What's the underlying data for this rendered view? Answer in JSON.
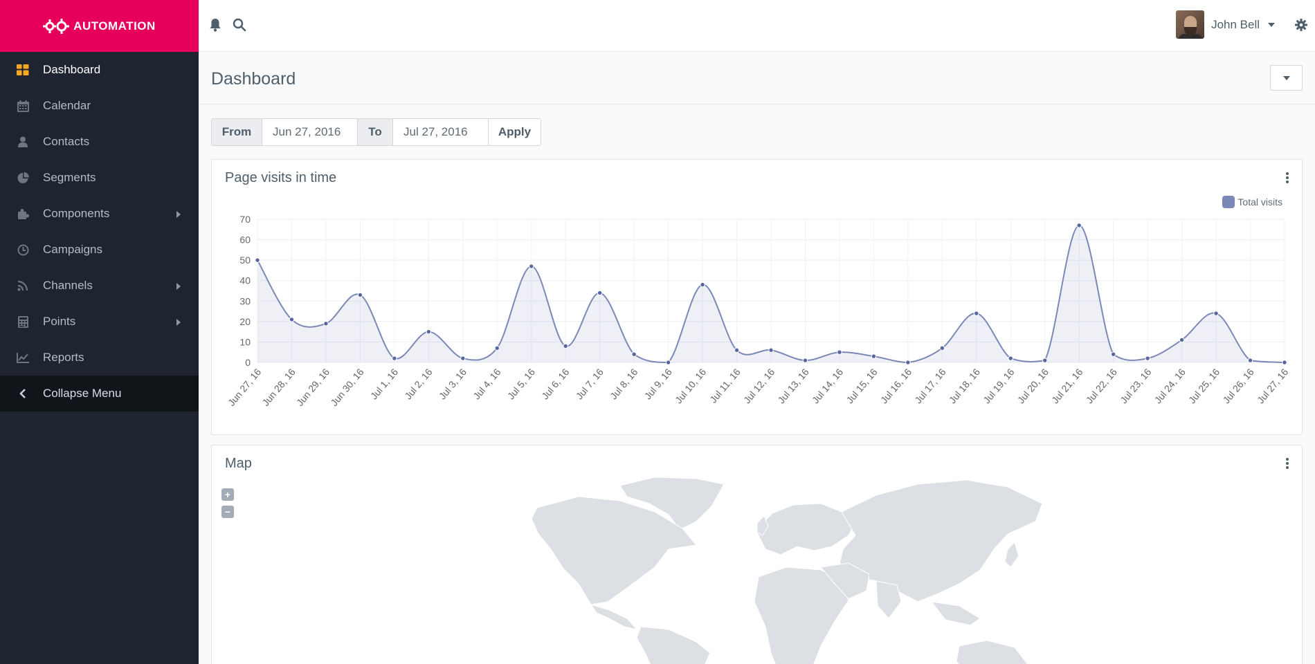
{
  "brand": {
    "name": "AUTOMATION"
  },
  "sidebar": {
    "items": [
      {
        "label": "Dashboard",
        "icon": "dashboard-icon",
        "active": true
      },
      {
        "label": "Calendar",
        "icon": "calendar-icon"
      },
      {
        "label": "Contacts",
        "icon": "user-icon"
      },
      {
        "label": "Segments",
        "icon": "pie-chart-icon"
      },
      {
        "label": "Components",
        "icon": "puzzle-icon",
        "submenu": true
      },
      {
        "label": "Campaigns",
        "icon": "clock-icon"
      },
      {
        "label": "Channels",
        "icon": "rss-icon",
        "submenu": true
      },
      {
        "label": "Points",
        "icon": "calculator-icon",
        "submenu": true
      },
      {
        "label": "Reports",
        "icon": "line-chart-icon"
      }
    ],
    "collapse_label": "Collapse Menu"
  },
  "topbar": {
    "user_name": "John Bell"
  },
  "page": {
    "title": "Dashboard"
  },
  "date_filter": {
    "from_label": "From",
    "from_value": "Jun 27, 2016",
    "to_label": "To",
    "to_value": "Jul 27, 2016",
    "apply_label": "Apply"
  },
  "chart_panel": {
    "title": "Page visits in time"
  },
  "map_panel": {
    "title": "Map",
    "zoom_in": "+",
    "zoom_out": "−"
  },
  "colors": {
    "accent": "#e6005b",
    "sidebar": "#1e2530",
    "series": "#7b88b6",
    "map_land": "#dcdfe4"
  },
  "chart_data": {
    "type": "line",
    "title": "Page visits in time",
    "x": [
      "Jun 27, 16",
      "Jun 28, 16",
      "Jun 29, 16",
      "Jun 30, 16",
      "Jul 1, 16",
      "Jul 2, 16",
      "Jul 3, 16",
      "Jul 4, 16",
      "Jul 5, 16",
      "Jul 6, 16",
      "Jul 7, 16",
      "Jul 8, 16",
      "Jul 9, 16",
      "Jul 10, 16",
      "Jul 11, 16",
      "Jul 12, 16",
      "Jul 13, 16",
      "Jul 14, 16",
      "Jul 15, 16",
      "Jul 16, 16",
      "Jul 17, 16",
      "Jul 18, 16",
      "Jul 19, 16",
      "Jul 20, 16",
      "Jul 21, 16",
      "Jul 22, 16",
      "Jul 23, 16",
      "Jul 24, 16",
      "Jul 25, 16",
      "Jul 26, 16",
      "Jul 27, 16"
    ],
    "series": [
      {
        "name": "Total visits",
        "values": [
          50,
          21,
          19,
          33,
          2,
          15,
          2,
          7,
          47,
          8,
          34,
          4,
          0,
          38,
          6,
          6,
          1,
          5,
          3,
          0,
          7,
          24,
          2,
          1,
          67,
          4,
          2,
          11,
          24,
          1,
          0
        ]
      }
    ],
    "yticks": [
      0,
      10,
      20,
      30,
      40,
      50,
      60,
      70
    ],
    "ylim": [
      0,
      70
    ],
    "grid": true,
    "legend": "top-right"
  }
}
